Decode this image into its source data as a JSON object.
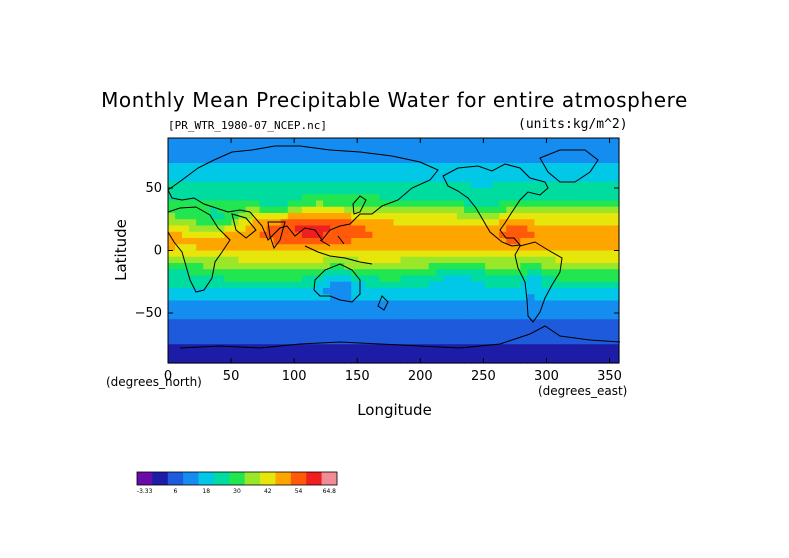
{
  "chart_data": {
    "type": "heatmap",
    "title": "Monthly Mean Precipitable Water for entire atmosphere",
    "subtitle_left": "[PR_WTR_1980-07_NCEP.nc]",
    "subtitle_right": "(units:kg/m^2)",
    "xlabel": "Longitude",
    "ylabel": "Latitude",
    "x_unit": "(degrees_east)",
    "y_unit": "(degrees_north)",
    "xlim": [
      0,
      357.5
    ],
    "ylim": [
      -90,
      90
    ],
    "x_ticks": [
      0,
      50,
      100,
      150,
      200,
      250,
      300,
      350
    ],
    "y_ticks": [
      -50,
      0,
      50
    ],
    "colorbar": {
      "labels": [
        "-3.33",
        "6",
        "18",
        "30",
        "42",
        "54",
        "64.8"
      ],
      "label_bins": [
        0,
        2,
        4,
        6,
        8,
        10,
        12
      ],
      "colors": [
        "#6a0aa8",
        "#1c1ca6",
        "#1e5adc",
        "#148cf0",
        "#00c8e6",
        "#00dca0",
        "#22e650",
        "#9ae628",
        "#e6e60a",
        "#ffa500",
        "#ff5a0a",
        "#f01e1e",
        "#f08c96"
      ]
    },
    "zonal_profile": {
      "lat": [
        -90,
        -80,
        -70,
        -60,
        -50,
        -40,
        -30,
        -20,
        -10,
        0,
        10,
        20,
        30,
        40,
        50,
        60,
        70,
        80,
        90
      ],
      "value": [
        1,
        2,
        3,
        7,
        11,
        15,
        21,
        29,
        37,
        44,
        49,
        46,
        37,
        28,
        22,
        18,
        14,
        11,
        9
      ]
    }
  }
}
